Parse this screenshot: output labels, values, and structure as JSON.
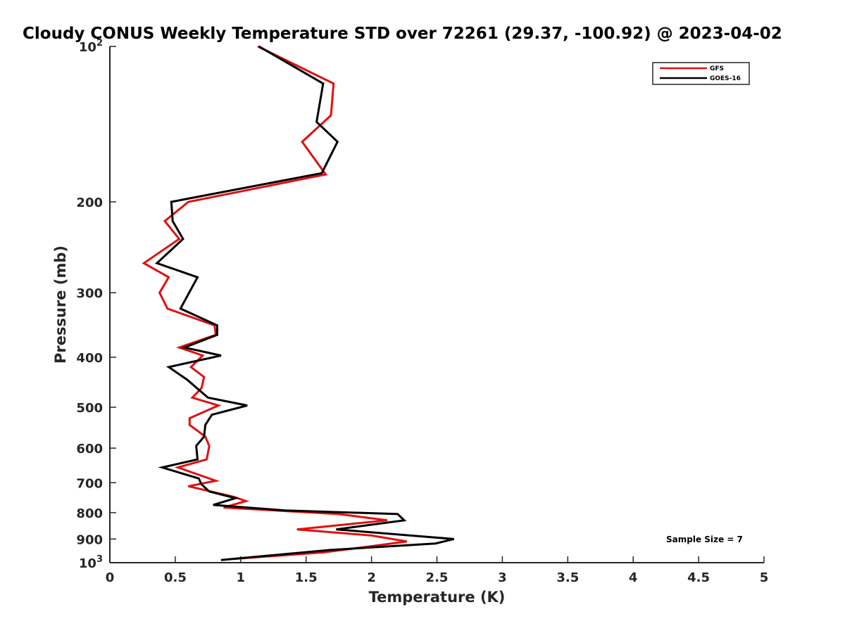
{
  "chart_data": {
    "type": "line",
    "title": "Cloudy CONUS Weekly Temperature STD over 72261 (29.37, -100.92) @ 2023-04-02",
    "xlabel": "Temperature (K)",
    "ylabel": "Pressure (mb)",
    "xlim": [
      0,
      5
    ],
    "ylim": [
      100,
      1000
    ],
    "yscale": "log",
    "y_reversed": true,
    "x_ticks": [
      "0",
      "0.5",
      "1",
      "1.5",
      "2",
      "2.5",
      "3",
      "3.5",
      "4",
      "4.5",
      "5"
    ],
    "y_ticks": [
      {
        "value": 100,
        "base": "10",
        "exp": "2"
      },
      {
        "value": 200,
        "label": "200"
      },
      {
        "value": 300,
        "label": "300"
      },
      {
        "value": 400,
        "label": "400"
      },
      {
        "value": 500,
        "label": "500"
      },
      {
        "value": 600,
        "label": "600"
      },
      {
        "value": 700,
        "label": "700"
      },
      {
        "value": 800,
        "label": "800"
      },
      {
        "value": 900,
        "label": "900"
      },
      {
        "value": 1000,
        "base": "10",
        "exp": "3"
      }
    ],
    "grid": false,
    "legend_position": "top-right",
    "annotation": "Sample Size = 7",
    "series": [
      {
        "name": "GFS",
        "color": "#e01010",
        "points": [
          [
            1.13,
            100
          ],
          [
            1.71,
            118
          ],
          [
            1.69,
            136
          ],
          [
            1.47,
            153
          ],
          [
            1.65,
            177
          ],
          [
            0.6,
            200
          ],
          [
            0.42,
            218
          ],
          [
            0.53,
            236
          ],
          [
            0.26,
            263
          ],
          [
            0.45,
            280
          ],
          [
            0.38,
            300
          ],
          [
            0.44,
            322
          ],
          [
            0.8,
            347
          ],
          [
            0.81,
            362
          ],
          [
            0.53,
            383
          ],
          [
            0.71,
            397
          ],
          [
            0.62,
            418
          ],
          [
            0.72,
            437
          ],
          [
            0.7,
            459
          ],
          [
            0.63,
            479
          ],
          [
            0.83,
            496
          ],
          [
            0.61,
            525
          ],
          [
            0.61,
            541
          ],
          [
            0.73,
            570
          ],
          [
            0.76,
            594
          ],
          [
            0.74,
            631
          ],
          [
            0.52,
            654
          ],
          [
            0.81,
            694
          ],
          [
            0.6,
            711
          ],
          [
            0.95,
            746
          ],
          [
            1.04,
            760
          ],
          [
            0.87,
            782
          ],
          [
            1.75,
            805
          ],
          [
            2.12,
            828
          ],
          [
            1.43,
            862
          ],
          [
            2.0,
            886
          ],
          [
            2.27,
            910
          ],
          [
            1.64,
            955
          ],
          [
            0.96,
            983
          ]
        ]
      },
      {
        "name": "GOES-16",
        "color": "#000000",
        "points": [
          [
            1.14,
            100
          ],
          [
            1.63,
            118
          ],
          [
            1.58,
            140
          ],
          [
            1.74,
            153
          ],
          [
            1.62,
            176
          ],
          [
            0.47,
            200
          ],
          [
            0.48,
            218
          ],
          [
            0.56,
            236
          ],
          [
            0.36,
            263
          ],
          [
            0.67,
            280
          ],
          [
            0.54,
            322
          ],
          [
            0.82,
            347
          ],
          [
            0.82,
            362
          ],
          [
            0.57,
            383
          ],
          [
            0.85,
            397
          ],
          [
            0.45,
            418
          ],
          [
            0.59,
            442
          ],
          [
            0.75,
            479
          ],
          [
            1.05,
            496
          ],
          [
            0.78,
            517
          ],
          [
            0.73,
            541
          ],
          [
            0.72,
            570
          ],
          [
            0.66,
            594
          ],
          [
            0.67,
            631
          ],
          [
            0.4,
            654
          ],
          [
            0.68,
            687
          ],
          [
            0.7,
            705
          ],
          [
            0.76,
            728
          ],
          [
            0.96,
            750
          ],
          [
            0.79,
            773
          ],
          [
            1.34,
            792
          ],
          [
            2.2,
            805
          ],
          [
            2.25,
            828
          ],
          [
            1.73,
            862
          ],
          [
            2.63,
            900
          ],
          [
            2.49,
            918
          ],
          [
            1.68,
            945
          ],
          [
            0.85,
            988
          ]
        ]
      }
    ]
  }
}
